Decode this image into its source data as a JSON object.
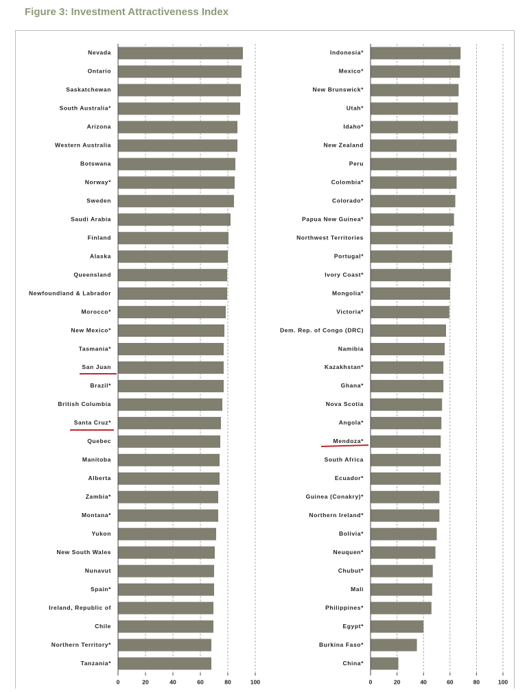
{
  "title": "Figure 3: Investment Attractiveness Index",
  "chart_data": [
    {
      "type": "bar",
      "orientation": "horizontal",
      "color": "#807f70",
      "grid": true,
      "xlim": [
        0,
        100
      ],
      "xticks": [
        0,
        20,
        40,
        60,
        80,
        100
      ],
      "categories": [
        "Nevada",
        "Ontario",
        "Saskatchewan",
        "South Australia*",
        "Arizona",
        "Western Australia",
        "Botswana",
        "Norway*",
        "Sweden",
        "Saudi Arabia",
        "Finland",
        "Alaska",
        "Queensland",
        "Newfoundland & Labrador",
        "Morocco*",
        "New Mexico*",
        "Tasmania*",
        "San Juan",
        "Brazil*",
        "British Columbia",
        "Santa Cruz*",
        "Quebec",
        "Manitoba",
        "Alberta",
        "Zambia*",
        "Montana*",
        "Yukon",
        "New South Wales",
        "Nunavut",
        "Spain*",
        "Ireland, Republic of",
        "Chile",
        "Northern Territory*",
        "Tanzania*"
      ],
      "values": [
        91,
        90,
        89.5,
        89,
        87,
        87,
        85.5,
        85,
        84.5,
        82,
        80.5,
        80,
        79.5,
        79.5,
        78.5,
        77.5,
        77,
        77,
        77,
        76,
        75,
        74.5,
        74,
        74,
        73,
        73,
        71.5,
        70.5,
        70,
        70,
        69.5,
        69.5,
        68,
        68
      ]
    },
    {
      "type": "bar",
      "orientation": "horizontal",
      "color": "#807f70",
      "grid": true,
      "xlim": [
        0,
        100
      ],
      "xticks": [
        0,
        20,
        40,
        60,
        80,
        100
      ],
      "categories": [
        "Indonesia*",
        "Mexico*",
        "New Brunswick*",
        "Utah*",
        "Idaho*",
        "New Zealand",
        "Peru",
        "Colombia*",
        "Colorado*",
        "Papua New Guinea*",
        "Northwest Territories",
        "Portugal*",
        "Ivory Coast*",
        "Mongolia*",
        "Victoria*",
        "Dem. Rep. of Congo (DRC)",
        "Namibia",
        "Kazakhstan*",
        "Ghana*",
        "Nova Scotia",
        "Angola*",
        "Mendoza*",
        "South Africa",
        "Ecuador*",
        "Guinea (Conakry)*",
        "Northern Ireland*",
        "Bolivia*",
        "Neuquen*",
        "Chubut*",
        "Mali",
        "Philippines*",
        "Egypt*",
        "Burkina Faso*",
        "China*"
      ],
      "values": [
        68,
        67.5,
        66.5,
        66,
        66,
        65,
        65,
        65,
        64,
        63,
        62,
        61.5,
        60.5,
        60,
        59.5,
        57,
        56,
        55,
        55,
        54,
        53.5,
        53,
        53,
        53,
        52,
        52,
        50,
        49,
        47,
        46.5,
        46,
        40,
        35,
        21
      ]
    }
  ]
}
